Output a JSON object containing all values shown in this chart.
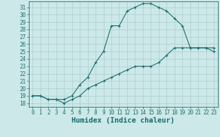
{
  "xlabel": "Humidex (Indice chaleur)",
  "xlim": [
    -0.5,
    23.5
  ],
  "ylim": [
    17.5,
    31.8
  ],
  "yticks": [
    18,
    19,
    20,
    21,
    22,
    23,
    24,
    25,
    26,
    27,
    28,
    29,
    30,
    31
  ],
  "xticks": [
    0,
    1,
    2,
    3,
    4,
    5,
    6,
    7,
    8,
    9,
    10,
    11,
    12,
    13,
    14,
    15,
    16,
    17,
    18,
    19,
    20,
    21,
    22,
    23
  ],
  "bg_color": "#cce8e8",
  "line_color": "#1a6b6b",
  "grid_color": "#aacccc",
  "line1_x": [
    0,
    1,
    2,
    3,
    4,
    5,
    6,
    7,
    8,
    9,
    10,
    11,
    12,
    13,
    14,
    15,
    16,
    17,
    18,
    19,
    20,
    21,
    22,
    23
  ],
  "line1_y": [
    19,
    19,
    18.5,
    18.5,
    18.5,
    19.0,
    20.5,
    21.5,
    23.5,
    25.0,
    28.5,
    28.5,
    30.5,
    31.0,
    31.5,
    31.5,
    31.0,
    30.5,
    29.5,
    28.5,
    25.5,
    25.5,
    25.5,
    25.5
  ],
  "line2_x": [
    0,
    1,
    2,
    3,
    4,
    5,
    6,
    7,
    8,
    9,
    10,
    11,
    12,
    13,
    14,
    15,
    16,
    17,
    18,
    19,
    20,
    21,
    22,
    23
  ],
  "line2_y": [
    19,
    19,
    18.5,
    18.5,
    18.0,
    18.5,
    19.0,
    20.0,
    20.5,
    21.0,
    21.5,
    22.0,
    22.5,
    23.0,
    23.0,
    23.0,
    23.5,
    24.5,
    25.5,
    25.5,
    25.5,
    25.5,
    25.5,
    25.0
  ],
  "tick_fontsize": 5.5,
  "label_fontsize": 7.5
}
